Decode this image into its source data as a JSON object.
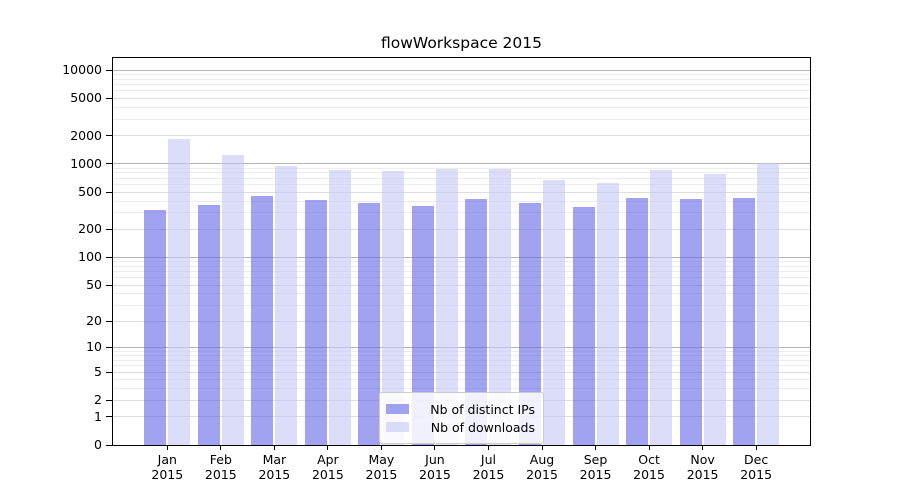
{
  "chart_data": {
    "type": "bar",
    "title": "flowWorkspace 2015",
    "categories": [
      "Jan",
      "Feb",
      "Mar",
      "Apr",
      "May",
      "Jun",
      "Jul",
      "Aug",
      "Sep",
      "Oct",
      "Nov",
      "Dec"
    ],
    "year_label": "2015",
    "series": [
      {
        "name": "Nb of distinct IPs",
        "color_solid": "#a1a3f1",
        "fill_rgba": "rgba(99,102,232,0.6)",
        "values": [
          320,
          360,
          450,
          410,
          380,
          355,
          420,
          385,
          345,
          430,
          425,
          430
        ]
      },
      {
        "name": "Nb of downloads",
        "color_solid": "#dbdcf8",
        "fill_rgba": "rgba(197,198,245,0.6)",
        "values": [
          1860,
          1240,
          950,
          870,
          840,
          880,
          880,
          680,
          625,
          860,
          780,
          1030
        ]
      }
    ],
    "yscale": "log10(value+1)",
    "yticks": [
      0,
      1,
      2,
      5,
      10,
      20,
      50,
      100,
      200,
      500,
      1000,
      2000,
      5000,
      10000
    ],
    "ylim": [
      0,
      13500
    ],
    "grid": {
      "major_ticks": [
        10,
        100,
        1000,
        10000
      ],
      "major_color": "#b5b5b5",
      "mid_color": "#dedede",
      "minor_color": "#ededed"
    },
    "legend_position": "inside bottom-center",
    "axis_color": "#000000",
    "background": "#ffffff"
  }
}
